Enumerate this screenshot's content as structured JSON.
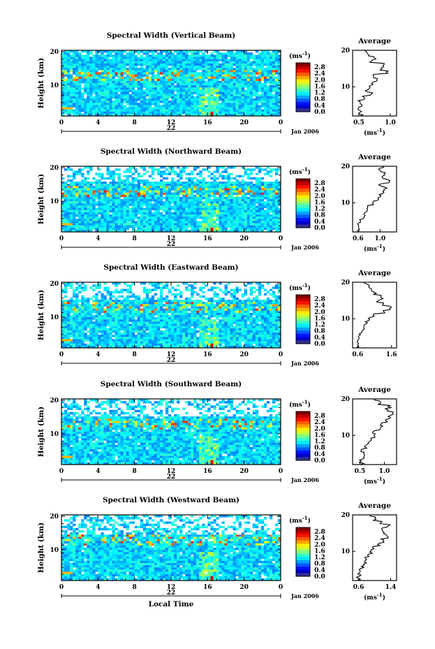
{
  "chart_data": [
    {
      "type": "heatmap",
      "title": "Spectral Width (Vertical Beam)",
      "ylabel": "Height (km)",
      "x_ticks": [
        "0",
        "4",
        "8",
        "12",
        "16",
        "20",
        "0"
      ],
      "y_ticks": [
        "20",
        "10"
      ],
      "day_label": "22",
      "date_label": "Jan 2006",
      "colorbar": {
        "unit": "(ms",
        "unit_exp": "-1",
        "unit_close": ")",
        "ticks": [
          "2.8",
          "2.4",
          "2.0",
          "1.6",
          "1.2",
          "0.8",
          "0.4",
          "0.0"
        ],
        "range": [
          0.0,
          3.0
        ]
      },
      "profile": {
        "title": "Average",
        "x_ticks": [
          "0.5",
          "1.0"
        ],
        "xlim": [
          0.4,
          1.1
        ],
        "xlabel": "(ms",
        "xlabel_exp": "-1",
        "xlabel_close": ")",
        "y_ticks": [
          "20",
          "10"
        ],
        "ylim": [
          2,
          20
        ],
        "heights": [
          2,
          3,
          4,
          5,
          6,
          7,
          8,
          9,
          10,
          11,
          12,
          13,
          14,
          15,
          16,
          17,
          18,
          19,
          20
        ],
        "values": [
          0.55,
          0.52,
          0.5,
          0.55,
          0.5,
          0.58,
          0.7,
          0.62,
          0.66,
          0.7,
          0.8,
          0.75,
          0.95,
          0.85,
          0.9,
          0.7,
          0.75,
          0.65,
          0.6
        ]
      }
    },
    {
      "type": "heatmap",
      "title": "Spectral Width (Northward Beam)",
      "ylabel": "Height (km)",
      "x_ticks": [
        "0",
        "4",
        "8",
        "12",
        "16",
        "20",
        "0"
      ],
      "y_ticks": [
        "20",
        "10"
      ],
      "day_label": "22",
      "date_label": "Jan 2006",
      "colorbar": {
        "unit": "(ms",
        "unit_exp": "-1",
        "unit_close": ")",
        "ticks": [
          "2.8",
          "2.4",
          "2.0",
          "1.6",
          "1.2",
          "0.8",
          "0.4",
          "0.0"
        ],
        "range": [
          0.0,
          3.0
        ]
      },
      "profile": {
        "title": "Average",
        "x_ticks": [
          "0.6",
          "1.0"
        ],
        "xlim": [
          0.5,
          1.3
        ],
        "xlabel": "(ms",
        "xlabel_exp": "-1",
        "xlabel_close": ")",
        "y_ticks": [
          "20",
          "10"
        ],
        "ylim": [
          2,
          20
        ],
        "heights": [
          2,
          3,
          4,
          5,
          6,
          7,
          8,
          9,
          10,
          11,
          12,
          13,
          14,
          15,
          16,
          17,
          18,
          19,
          20
        ],
        "values": [
          0.6,
          0.62,
          0.6,
          0.65,
          0.68,
          0.7,
          0.78,
          0.8,
          0.85,
          0.95,
          1.0,
          1.05,
          1.1,
          1.0,
          1.15,
          1.05,
          1.1,
          1.0,
          1.05
        ]
      }
    },
    {
      "type": "heatmap",
      "title": "Spectral Width (Eastward Beam)",
      "ylabel": "Height (km)",
      "x_ticks": [
        "0",
        "4",
        "8",
        "12",
        "16",
        "20",
        "0"
      ],
      "y_ticks": [
        "20",
        "10"
      ],
      "day_label": "22",
      "date_label": "Jan 2006",
      "colorbar": {
        "unit": "(ms",
        "unit_exp": "-1",
        "unit_close": ")",
        "ticks": [
          "2.8",
          "2.4",
          "2.0",
          "1.6",
          "1.2",
          "0.8",
          "0.4",
          "0.0"
        ],
        "range": [
          0.0,
          3.0
        ]
      },
      "profile": {
        "title": "Average",
        "x_ticks": [
          "0.6",
          "1.6"
        ],
        "xlim": [
          0.45,
          1.75
        ],
        "xlabel": "",
        "y_ticks": [
          "20",
          "10"
        ],
        "ylim": [
          2,
          20
        ],
        "heights": [
          2,
          3,
          4,
          5,
          6,
          7,
          8,
          9,
          10,
          11,
          12,
          13,
          14,
          15,
          16,
          17,
          18,
          19,
          20
        ],
        "values": [
          0.6,
          0.58,
          0.62,
          0.65,
          0.7,
          0.75,
          0.8,
          0.85,
          0.95,
          1.1,
          1.4,
          1.55,
          1.35,
          1.2,
          1.3,
          1.1,
          1.0,
          0.9,
          0.8
        ]
      }
    },
    {
      "type": "heatmap",
      "title": "Spectral Width (Southward Beam)",
      "ylabel": "Height (km)",
      "x_ticks": [
        "0",
        "4",
        "8",
        "12",
        "16",
        "20",
        "0"
      ],
      "y_ticks": [
        "20",
        "10"
      ],
      "day_label": "22",
      "date_label": "Jan 2006",
      "colorbar": {
        "unit": "(ms",
        "unit_exp": "-1",
        "unit_close": ")",
        "ticks": [
          "2.8",
          "2.4",
          "2.0",
          "1.6",
          "1.2",
          "0.8",
          "0.4",
          "0.0"
        ],
        "range": [
          0.0,
          3.0
        ]
      },
      "profile": {
        "title": "Average",
        "x_ticks": [
          "0.5",
          "1.0"
        ],
        "xlim": [
          0.35,
          1.25
        ],
        "xlabel": "(ms",
        "xlabel_exp": "-1",
        "xlabel_close": ")",
        "y_ticks": [
          "20",
          "10"
        ],
        "ylim": [
          2,
          20
        ],
        "heights": [
          2,
          3,
          4,
          5,
          6,
          7,
          8,
          9,
          10,
          11,
          12,
          13,
          14,
          15,
          16,
          17,
          18,
          19,
          20
        ],
        "values": [
          0.55,
          0.5,
          0.58,
          0.6,
          0.55,
          0.62,
          0.68,
          0.72,
          0.8,
          0.78,
          0.9,
          0.95,
          1.05,
          1.1,
          1.15,
          1.05,
          1.1,
          0.9,
          0.8
        ]
      }
    },
    {
      "type": "heatmap",
      "title": "Spectral Width (Westward Beam)",
      "ylabel": "Height (km)",
      "x_ticks": [
        "0",
        "4",
        "8",
        "12",
        "16",
        "20",
        "0"
      ],
      "y_ticks": [
        "20",
        "10"
      ],
      "day_label": "22",
      "date_label": "Jan 2006",
      "xlabel": "Local Time",
      "colorbar": {
        "unit": "(ms",
        "unit_exp": "-1",
        "unit_close": ")",
        "ticks": [
          "2.8",
          "2.4",
          "2.0",
          "1.6",
          "1.2",
          "0.8",
          "0.4",
          "0.0"
        ],
        "range": [
          0.0,
          3.0
        ]
      },
      "profile": {
        "title": "Average",
        "x_ticks": [
          "0.6",
          "1.4"
        ],
        "xlim": [
          0.45,
          1.55
        ],
        "xlabel": "(ms",
        "xlabel_exp": "-1",
        "xlabel_close": ")",
        "y_ticks": [
          "20",
          "10"
        ],
        "ylim": [
          2,
          20
        ],
        "heights": [
          2,
          3,
          4,
          5,
          6,
          7,
          8,
          9,
          10,
          11,
          12,
          13,
          14,
          15,
          16,
          17,
          18,
          19,
          20
        ],
        "values": [
          0.6,
          0.58,
          0.62,
          0.65,
          0.7,
          0.75,
          0.8,
          0.82,
          0.9,
          0.95,
          1.1,
          1.2,
          1.3,
          1.25,
          1.2,
          1.35,
          1.15,
          1.0,
          0.9
        ]
      }
    }
  ]
}
